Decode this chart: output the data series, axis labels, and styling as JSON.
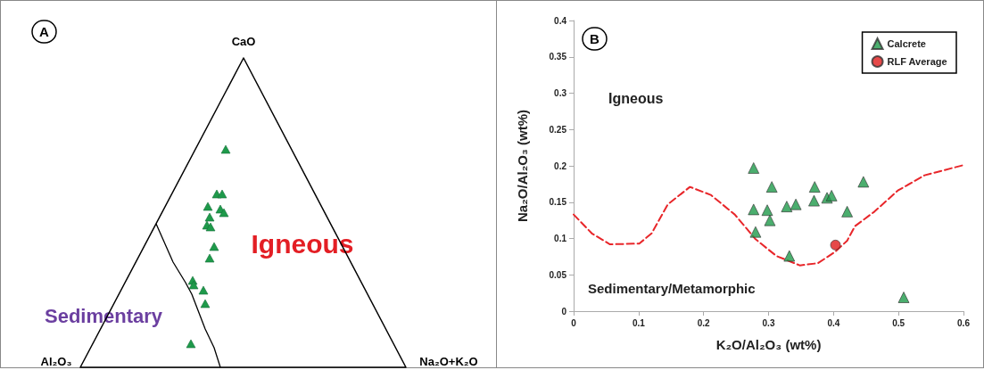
{
  "chart_data": [
    {
      "type": "other",
      "title": "A",
      "annotations": [
        "CaO",
        "Al₂O₃",
        "Na₂O+K₂O",
        "Igneous",
        "Sedimentary"
      ]
    },
    {
      "type": "scatter",
      "title": "B",
      "xlabel": "K₂O/Al₂O₃ (wt%)",
      "ylabel": "Na₂O/Al₂O₃ (wt%)",
      "xlim": [
        0,
        0.6
      ],
      "xticks": [
        0,
        0.1,
        0.2,
        0.3,
        0.4,
        0.5,
        0.6
      ],
      "ylim": [
        0,
        0.4
      ],
      "yticks": [
        0,
        0.05,
        0.1,
        0.15,
        0.2,
        0.25,
        0.3,
        0.35,
        0.4
      ],
      "legend": "top right",
      "annotations": [
        "Igneous",
        "Sedimentary/Metamorphic"
      ],
      "series": [
        {
          "type": "line",
          "marker": "none",
          "line_style": "dashed",
          "color": "#e8262a",
          "x": [
            0,
            0.028,
            0.056,
            0.101,
            0.12,
            0.145,
            0.179,
            0.211,
            0.248,
            0.28,
            0.312,
            0.348,
            0.376,
            0.403,
            0.421,
            0.433,
            0.463,
            0.499,
            0.54,
            0.6
          ],
          "values": [
            0.133,
            0.107,
            0.092,
            0.093,
            0.107,
            0.147,
            0.171,
            0.16,
            0.133,
            0.099,
            0.076,
            0.063,
            0.066,
            0.082,
            0.097,
            0.117,
            0.137,
            0.166,
            0.187,
            0.201
          ]
        },
        {
          "name": "Calcrete",
          "type": "scatter",
          "marker": "triangle",
          "color": "#1e9a4a",
          "x": [
            0.277,
            0.277,
            0.28,
            0.305,
            0.298,
            0.302,
            0.328,
            0.342,
            0.332,
            0.371,
            0.37,
            0.39,
            0.397,
            0.421,
            0.446,
            0.508
          ],
          "values": [
            0.197,
            0.14,
            0.109,
            0.171,
            0.139,
            0.125,
            0.144,
            0.147,
            0.076,
            0.171,
            0.152,
            0.156,
            0.159,
            0.137,
            0.178,
            0.019
          ]
        },
        {
          "name": "RLF Average",
          "type": "scatter",
          "marker": "circle",
          "color": "#e01b1b",
          "x": [
            0.403
          ],
          "values": [
            0.091
          ]
        }
      ]
    }
  ]
}
